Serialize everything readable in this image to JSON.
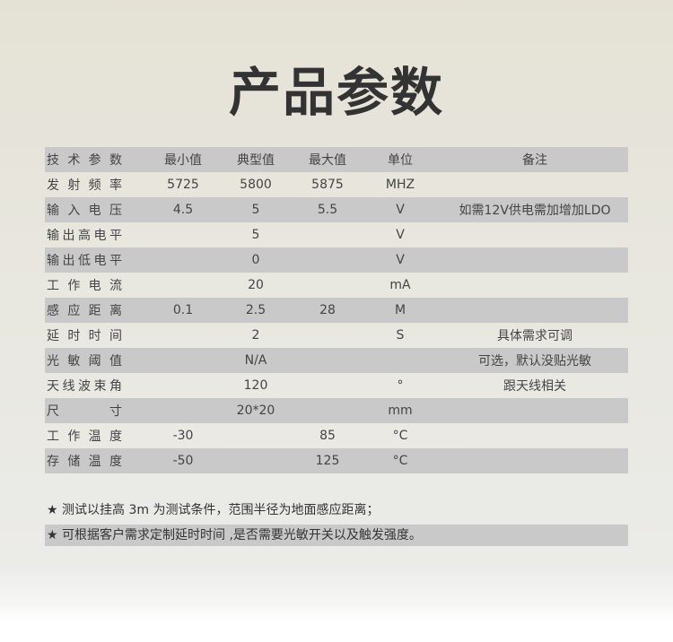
{
  "title": "产品参数",
  "table": {
    "headers": [
      "技术参数",
      "最小值",
      "典型值",
      "最大值",
      "单位",
      "备注"
    ],
    "rows": [
      [
        "发射频率",
        "5725",
        "5800",
        "5875",
        "MHZ",
        ""
      ],
      [
        "输入电压",
        "4.5",
        "5",
        "5.5",
        "V",
        "如需12V供电需加增加LDO"
      ],
      [
        "输出高电平",
        "",
        "5",
        "",
        "V",
        ""
      ],
      [
        "输出低电平",
        "",
        "0",
        "",
        "V",
        ""
      ],
      [
        "工作电流",
        "",
        "20",
        "",
        "mA",
        ""
      ],
      [
        "感应距离",
        "0.1",
        "2.5",
        "28",
        "M",
        ""
      ],
      [
        "延时时间",
        "",
        "2",
        "",
        "S",
        "具体需求可调"
      ],
      [
        "光敏阈值",
        "",
        "N/A",
        "",
        "",
        "可选，默认没贴光敏"
      ],
      [
        "天线波束角",
        "",
        "120",
        "",
        "°",
        "跟天线相关"
      ],
      [
        "尺寸",
        "",
        "20*20",
        "",
        "mm",
        ""
      ],
      [
        "工作温度",
        "-30",
        "",
        "85",
        "°C",
        ""
      ],
      [
        "存储温度",
        "-50",
        "",
        "125",
        "°C",
        ""
      ]
    ]
  },
  "notes": [
    "★ 测试以挂高 3m 为测试条件，范围半径为地面感应距离；",
    "★ 可根据客户需求定制延时时间 ,是否需要光敏开关以及触发强度。"
  ],
  "colors": {
    "stripe": "#c9c9c9",
    "title": "#333333"
  }
}
